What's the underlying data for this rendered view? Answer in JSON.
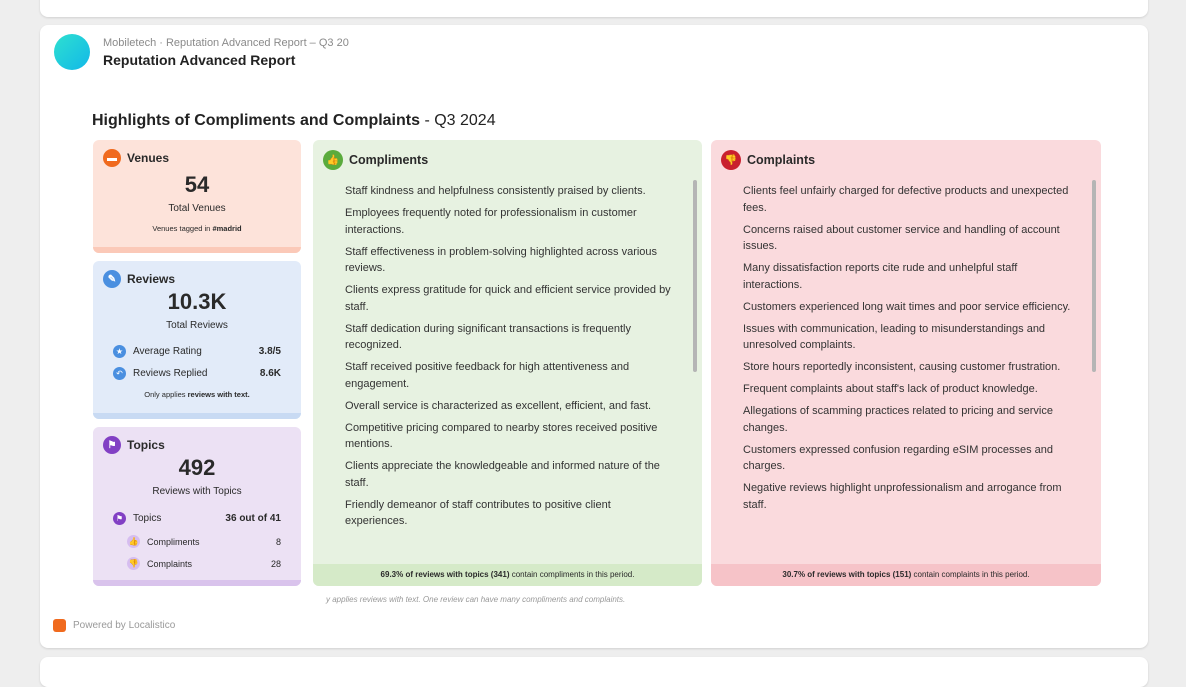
{
  "header": {
    "breadcrumb": "Mobiletech · Reputation Advanced Report – Q3 20",
    "title": "Reputation Advanced Report"
  },
  "section": {
    "title": "Highlights of Compliments and Complaints",
    "period": " - Q3 2024"
  },
  "venues": {
    "label": "Venues",
    "value": "54",
    "caption": "Total Venues",
    "note_prefix": "Venues tagged in ",
    "note_tag": "#madrid"
  },
  "reviews": {
    "label": "Reviews",
    "value": "10.3K",
    "caption": "Total Reviews",
    "avg_label": "Average Rating",
    "avg_value": "3.8/5",
    "replied_label": "Reviews Replied",
    "replied_value": "8.6K",
    "note_prefix": "Only applies ",
    "note_bold": "reviews with text."
  },
  "topics": {
    "label": "Topics",
    "value": "492",
    "caption": "Reviews with Topics",
    "topics_label": "Topics",
    "topics_value": "36 out of 41",
    "compliments_label": "Compliments",
    "compliments_value": "8",
    "complaints_label": "Complaints",
    "complaints_value": "28"
  },
  "compliments": {
    "title": "Compliments",
    "items": [
      "Staff kindness and helpfulness consistently praised by clients.",
      "Employees frequently noted for professionalism in customer interactions.",
      "Staff effectiveness in problem-solving highlighted across various reviews.",
      "Clients express gratitude for quick and efficient service provided by staff.",
      "Staff dedication during significant transactions is frequently recognized.",
      "Staff received positive feedback for high attentiveness and engagement.",
      "Overall service is characterized as excellent, efficient, and fast.",
      "Competitive pricing compared to nearby stores received positive mentions.",
      "Clients appreciate the knowledgeable and informed nature of the staff.",
      "Friendly demeanor of staff contributes to positive client experiences."
    ],
    "footer_bold": "69.3% of reviews with topics (341)",
    "footer_rest": " contain compliments in this period."
  },
  "complaints": {
    "title": "Complaints",
    "items": [
      "Clients feel unfairly charged for defective products and unexpected fees.",
      "Concerns raised about customer service and handling of account issues.",
      "Many dissatisfaction reports cite rude and unhelpful staff interactions.",
      "Customers experienced long wait times and poor service efficiency.",
      "Issues with communication, leading to misunderstandings and unresolved complaints.",
      "Store hours reportedly inconsistent, causing customer frustration.",
      "Frequent complaints about staff's lack of product knowledge.",
      "Allegations of scamming practices related to pricing and service changes.",
      "Customers expressed confusion regarding eSIM processes and charges.",
      "Negative reviews highlight unprofessionalism and arrogance from staff."
    ],
    "footer_bold": "30.7% of reviews with topics (151)",
    "footer_rest": " contain complaints in this period."
  },
  "disclaimer": "y applies reviews with text. One review can have many compliments and complaints.",
  "powered": "Powered by Localistico",
  "colors": {
    "venues_bg": "#fde3da",
    "reviews_bg": "#e2ebf9",
    "topics_bg": "#ece1f4",
    "compliments_bg": "#e7f2e1",
    "complaints_bg": "#fadadd"
  }
}
